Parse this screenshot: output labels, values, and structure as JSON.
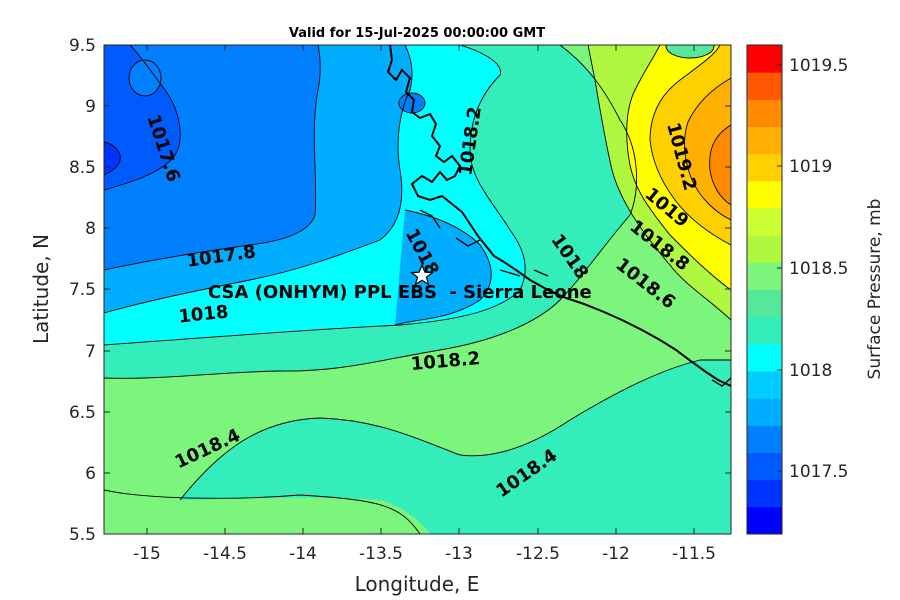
{
  "title": "Valid for 15-Jul-2025 00:00:00 GMT",
  "xlabel": "Longitude, E",
  "ylabel": "Latitude, N",
  "xticks": [
    "-15",
    "-14.5",
    "-14",
    "-13.5",
    "-13",
    "-12.5",
    "-12",
    "-11.5"
  ],
  "yticks": [
    "9.5",
    "9",
    "8.5",
    "8",
    "7.5",
    "7",
    "6.5",
    "6",
    "5.5"
  ],
  "colorbar": {
    "label": "Surface Pressure, mb",
    "ticks": [
      "1019.5",
      "1019",
      "1018.5",
      "1018",
      "1017.5"
    ],
    "colors": [
      "#0000ff",
      "#0033ff",
      "#005bff",
      "#0080ff",
      "#00adff",
      "#00ccff",
      "#00ffff",
      "#33eeba",
      "#55e89a",
      "#7cf57c",
      "#b0f840",
      "#ccff33",
      "#ffff00",
      "#ffd000",
      "#ffb000",
      "#ff8a00",
      "#ff5800",
      "#ff0000"
    ]
  },
  "contour_labels": [
    "1017.6",
    "1017.8",
    "1018",
    "1018",
    "1018.2",
    "1018.2",
    "1018.4",
    "1018.4",
    "1018",
    "1018.6",
    "1018.8",
    "1019",
    "1019.2"
  ],
  "site": {
    "label": "CSA (ONHYM) PPL EBS  - Sierra Leone"
  },
  "chart_data": {
    "type": "heatmap",
    "title": "Valid for 15-Jul-2025 00:00:00 GMT",
    "xlabel": "Longitude, E",
    "ylabel": "Latitude, N",
    "xlim": [
      -15.25,
      -11.25
    ],
    "ylim": [
      5.5,
      9.5
    ],
    "colorbar_label": "Surface Pressure, mb",
    "colorbar_range": [
      1017.2,
      1019.6
    ],
    "contour_levels": [
      1017.6,
      1017.8,
      1018.0,
      1018.2,
      1018.4,
      1018.6,
      1018.8,
      1019.0,
      1019.2
    ],
    "site_marker": {
      "lon": -13.22,
      "lat": 7.6
    }
  }
}
